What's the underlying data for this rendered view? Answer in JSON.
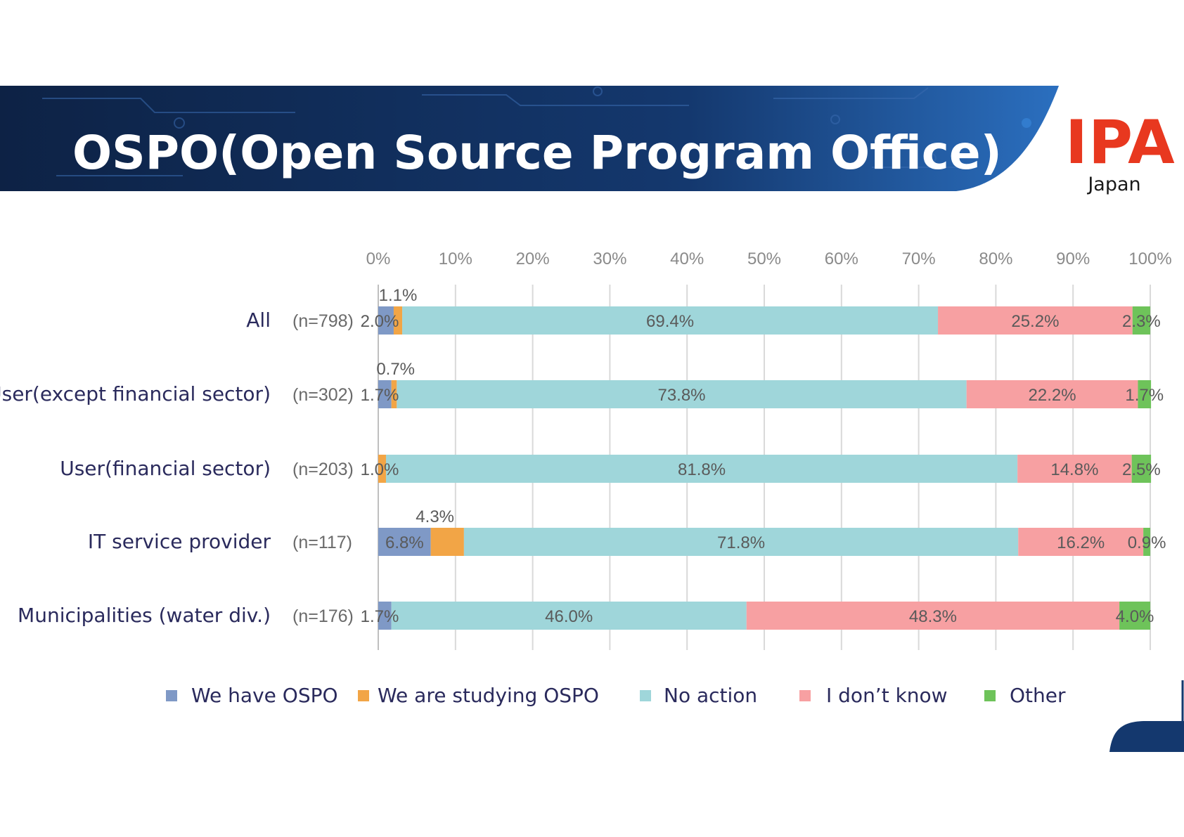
{
  "slide": {
    "title": "OSPO(Open Source Program Office)",
    "logo": {
      "mark": "IPA",
      "country": "Japan"
    }
  },
  "colors": {
    "banner_dark": "#0d2245",
    "banner_mid": "#14386e",
    "banner_accent": "#2b6fbf",
    "logo_red": "#e8381f",
    "category_text": "#2a2a5c"
  },
  "chart_data": {
    "type": "bar",
    "orientation": "horizontal",
    "stacked": true,
    "percent": true,
    "xlim": [
      0,
      100
    ],
    "xticks": [
      "0%",
      "10%",
      "20%",
      "30%",
      "40%",
      "50%",
      "60%",
      "70%",
      "80%",
      "90%",
      "100%"
    ],
    "grid": true,
    "legend_position": "bottom",
    "categories": [
      "All",
      "User(except financial sector)",
      "User(financial sector)",
      "IT service provider",
      "Municipalities (water div.)"
    ],
    "sample_sizes": [
      "(n=798)",
      "(n=302)",
      "(n=203)",
      "(n=117)",
      "(n=176)"
    ],
    "series": [
      {
        "name": "We have OSPO",
        "color": "#7f99c6",
        "values": [
          2.0,
          1.7,
          0,
          6.8,
          1.7
        ],
        "labels": [
          "2.0%",
          "1.7%",
          "",
          "6.8%",
          "1.7%"
        ]
      },
      {
        "name": "We are studying OSPO",
        "color": "#f2a546",
        "values": [
          1.1,
          0.7,
          1.0,
          4.3,
          0
        ],
        "labels": [
          "1.1%",
          "0.7%",
          "1.0%",
          "4.3%",
          ""
        ]
      },
      {
        "name": "No action",
        "color": "#9fd6da",
        "values": [
          69.4,
          73.8,
          81.8,
          71.8,
          46.0
        ],
        "labels": [
          "69.4%",
          "73.8%",
          "81.8%",
          "71.8%",
          "46.0%"
        ]
      },
      {
        "name": "I don’t know",
        "color": "#f7a0a2",
        "values": [
          25.2,
          22.2,
          14.8,
          16.2,
          48.3
        ],
        "labels": [
          "25.2%",
          "22.2%",
          "14.8%",
          "16.2%",
          "48.3%"
        ]
      },
      {
        "name": "Other",
        "color": "#6ec35a",
        "values": [
          2.3,
          1.7,
          2.5,
          0.9,
          4.0
        ],
        "labels": [
          "2.3%",
          "1.7%",
          "2.5%",
          "0.9%",
          "4.0%"
        ]
      }
    ]
  }
}
